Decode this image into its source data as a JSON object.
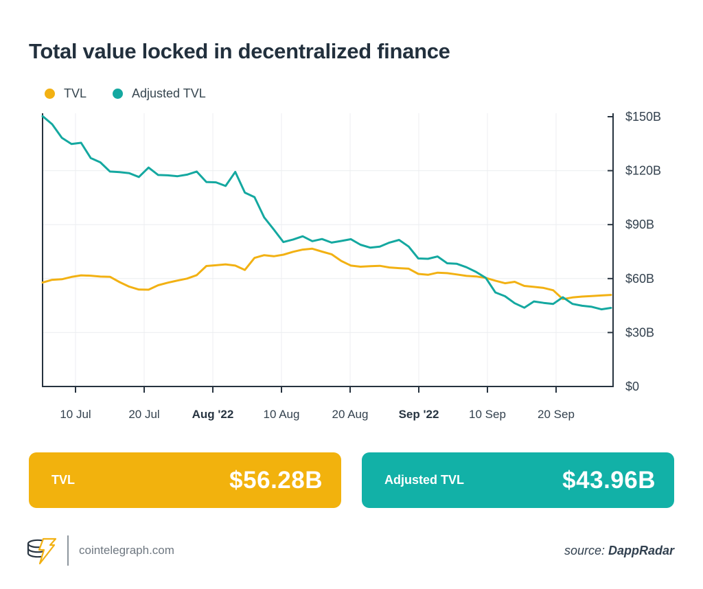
{
  "title": "Total value locked in decentralized finance",
  "legend": [
    {
      "label": "TVL",
      "color": "#F2B113"
    },
    {
      "label": "Adjusted TVL",
      "color": "#14A8A0"
    }
  ],
  "chart_data": {
    "type": "line",
    "title": "Total value locked in decentralized finance",
    "xlabel": "",
    "ylabel": "",
    "ylim": [
      0,
      150
    ],
    "grid": true,
    "legend_position": "top-left",
    "x_range": [
      "4 Jul 2022",
      "30 Sep 2022"
    ],
    "x_ticks": [
      {
        "label": "10 Jul",
        "bold": false
      },
      {
        "label": "20 Jul",
        "bold": false
      },
      {
        "label": "Aug '22",
        "bold": true
      },
      {
        "label": "10 Aug",
        "bold": false
      },
      {
        "label": "20 Aug",
        "bold": false
      },
      {
        "label": "Sep '22",
        "bold": true
      },
      {
        "label": "10 Sep",
        "bold": false
      },
      {
        "label": "20 Sep",
        "bold": false
      }
    ],
    "y_ticks": [
      {
        "label": "$150B",
        "value": 150
      },
      {
        "label": "$120B",
        "value": 120
      },
      {
        "label": "$90B",
        "value": 90
      },
      {
        "label": "$60B",
        "value": 60
      },
      {
        "label": "$30B",
        "value": 30
      },
      {
        "label": "$0",
        "value": 0
      }
    ],
    "series": [
      {
        "name": "Adjusted TVL",
        "color": "#14A8A0",
        "unit": "$B",
        "values": [
          150.3,
          145.8,
          138.3,
          134.8,
          135.5,
          127.0,
          124.6,
          119.5,
          119.2,
          118.6,
          116.5,
          121.7,
          117.6,
          117.4,
          116.9,
          117.8,
          119.5,
          113.7,
          113.5,
          111.5,
          119.3,
          107.8,
          105.3,
          94.0,
          87.3,
          80.3,
          81.7,
          83.5,
          80.8,
          82.0,
          80.0,
          80.9,
          81.9,
          78.8,
          77.2,
          77.8,
          80.0,
          81.5,
          77.8,
          71.2,
          71.0,
          72.3,
          68.5,
          68.2,
          66.3,
          63.7,
          60.4,
          52.3,
          50.2,
          46.3,
          43.8,
          47.3,
          46.5,
          45.9,
          49.6,
          45.9,
          44.9,
          44.3,
          42.9,
          43.7
        ]
      },
      {
        "name": "TVL",
        "color": "#F2B113",
        "unit": "$B",
        "values": [
          57.8,
          59.3,
          59.6,
          60.9,
          61.8,
          61.6,
          61.1,
          61.0,
          58.0,
          55.5,
          53.9,
          53.8,
          56.3,
          57.7,
          58.9,
          60.0,
          61.9,
          67.0,
          67.4,
          67.9,
          67.2,
          64.8,
          71.5,
          73.0,
          72.4,
          73.3,
          74.9,
          76.1,
          76.6,
          75.0,
          73.5,
          69.8,
          67.2,
          66.6,
          66.9,
          67.1,
          66.2,
          65.8,
          65.5,
          62.6,
          62.1,
          63.3,
          63.0,
          62.3,
          61.5,
          61.2,
          60.4,
          58.8,
          57.4,
          58.2,
          55.9,
          55.4,
          54.8,
          53.5,
          48.6,
          49.5,
          50.0,
          50.3,
          50.6,
          50.9
        ]
      }
    ]
  },
  "cards": [
    {
      "label": "TVL",
      "value": "$56.28B",
      "color": "#F2B20D"
    },
    {
      "label": "Adjusted TVL",
      "value": "$43.96B",
      "color": "#12B1A7"
    }
  ],
  "footer": {
    "site": "cointelegraph.com",
    "source_prefix": "source: ",
    "source_name": "DappRadar"
  }
}
